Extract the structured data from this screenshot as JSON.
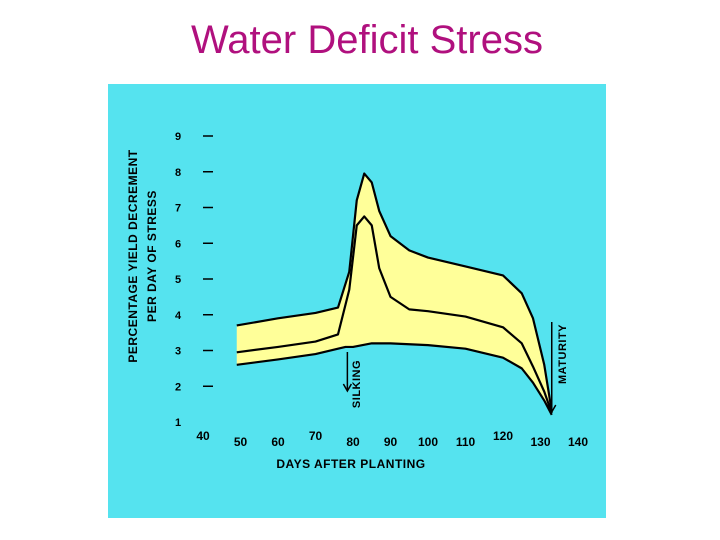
{
  "slide": {
    "title": "Water Deficit Stress"
  },
  "colors": {
    "title": "#b0107e",
    "panel": "#55e3ef",
    "band": "#ffff99",
    "ink": "#000000"
  },
  "chart_data": {
    "type": "area",
    "title": "",
    "xlabel": "DAYS AFTER PLANTING",
    "ylabel_lines": [
      "PERCENTAGE YIELD DECREMENT",
      "PER DAY OF STRESS"
    ],
    "x_ticks": [
      40,
      50,
      60,
      70,
      80,
      90,
      100,
      110,
      120,
      130,
      140
    ],
    "y_ticks": [
      1,
      2,
      3,
      4,
      5,
      6,
      7,
      8,
      9
    ],
    "xlim": [
      40,
      140
    ],
    "ylim": [
      1,
      9
    ],
    "grid": false,
    "series": [
      {
        "role": "upper",
        "x": [
          49,
          60,
          70,
          76,
          79,
          81,
          83,
          85,
          87,
          90,
          95,
          100,
          110,
          120,
          125,
          128,
          131,
          133
        ],
        "y": [
          3.7,
          3.9,
          4.05,
          4.2,
          5.2,
          7.2,
          7.95,
          7.7,
          6.9,
          6.2,
          5.8,
          5.6,
          5.35,
          5.1,
          4.6,
          3.9,
          2.6,
          1.3
        ]
      },
      {
        "role": "middle",
        "x": [
          49,
          60,
          70,
          76,
          79,
          81,
          83,
          85,
          87,
          90,
          95,
          100,
          110,
          120,
          125,
          128,
          131,
          133
        ],
        "y": [
          2.95,
          3.1,
          3.25,
          3.45,
          4.7,
          6.5,
          6.75,
          6.5,
          5.3,
          4.5,
          4.15,
          4.1,
          3.95,
          3.65,
          3.2,
          2.55,
          1.85,
          1.25
        ]
      },
      {
        "role": "lower",
        "x": [
          49,
          60,
          70,
          76,
          78,
          80,
          85,
          90,
          100,
          110,
          120,
          125,
          128,
          131,
          133
        ],
        "y": [
          2.6,
          2.75,
          2.9,
          3.05,
          3.1,
          3.1,
          3.2,
          3.2,
          3.15,
          3.05,
          2.8,
          2.5,
          2.1,
          1.6,
          1.2
        ]
      }
    ],
    "annotations": [
      {
        "label": "SILKING",
        "x": 78.5,
        "y": 2.4,
        "arrow": "down"
      },
      {
        "label": "MATURITY",
        "x": 133,
        "y": 3.5,
        "arrow": "down"
      }
    ]
  }
}
